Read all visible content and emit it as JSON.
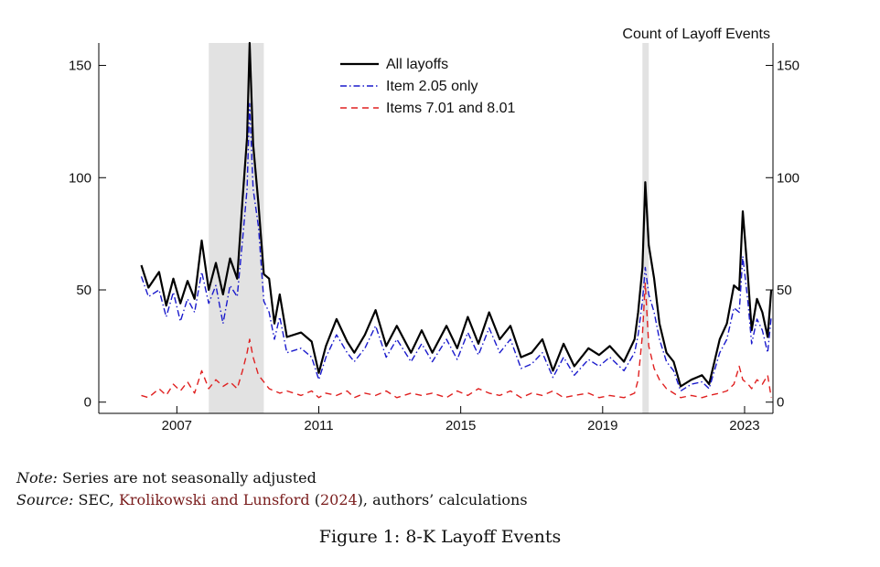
{
  "chart_data": {
    "type": "line",
    "title": "",
    "xlabel": "",
    "ylabel": "",
    "right_axis_label": "Count of Layoff Events",
    "xlim": [
      2004.8,
      2023.8
    ],
    "ylim": [
      -5,
      160
    ],
    "xticks": [
      2007,
      2011,
      2015,
      2019,
      2023
    ],
    "xtick_labels": [
      "2007",
      "2011",
      "2015",
      "2019",
      "2023"
    ],
    "yticks": [
      0,
      50,
      100,
      150
    ],
    "ytick_labels": [
      "0",
      "50",
      "100",
      "150"
    ],
    "grid": false,
    "legend_position": "top-center",
    "recession_shading": [
      {
        "start": 2007.9,
        "end": 2009.45
      },
      {
        "start": 2020.12,
        "end": 2020.3
      }
    ],
    "series": [
      {
        "name": "All layoffs",
        "color": "#000000",
        "style": "solid",
        "points": [
          [
            2006.0,
            61
          ],
          [
            2006.2,
            51
          ],
          [
            2006.5,
            58
          ],
          [
            2006.7,
            43
          ],
          [
            2006.9,
            55
          ],
          [
            2007.1,
            44
          ],
          [
            2007.3,
            54
          ],
          [
            2007.5,
            46
          ],
          [
            2007.7,
            72
          ],
          [
            2007.9,
            50
          ],
          [
            2008.1,
            62
          ],
          [
            2008.3,
            48
          ],
          [
            2008.5,
            64
          ],
          [
            2008.7,
            55
          ],
          [
            2008.85,
            90
          ],
          [
            2008.98,
            118
          ],
          [
            2009.05,
            160
          ],
          [
            2009.15,
            115
          ],
          [
            2009.3,
            88
          ],
          [
            2009.45,
            57
          ],
          [
            2009.6,
            55
          ],
          [
            2009.75,
            35
          ],
          [
            2009.9,
            48
          ],
          [
            2010.1,
            29
          ],
          [
            2010.5,
            31
          ],
          [
            2010.8,
            27
          ],
          [
            2011.0,
            13
          ],
          [
            2011.2,
            25
          ],
          [
            2011.5,
            37
          ],
          [
            2011.8,
            27
          ],
          [
            2012.0,
            22
          ],
          [
            2012.3,
            30
          ],
          [
            2012.6,
            41
          ],
          [
            2012.9,
            25
          ],
          [
            2013.2,
            34
          ],
          [
            2013.6,
            22
          ],
          [
            2013.9,
            32
          ],
          [
            2014.2,
            22
          ],
          [
            2014.6,
            34
          ],
          [
            2014.9,
            24
          ],
          [
            2015.2,
            38
          ],
          [
            2015.5,
            26
          ],
          [
            2015.8,
            40
          ],
          [
            2016.1,
            28
          ],
          [
            2016.4,
            34
          ],
          [
            2016.7,
            20
          ],
          [
            2017.0,
            22
          ],
          [
            2017.3,
            28
          ],
          [
            2017.6,
            14
          ],
          [
            2017.9,
            26
          ],
          [
            2018.2,
            16
          ],
          [
            2018.6,
            24
          ],
          [
            2018.9,
            21
          ],
          [
            2019.2,
            25
          ],
          [
            2019.6,
            18
          ],
          [
            2019.9,
            28
          ],
          [
            2020.0,
            40
          ],
          [
            2020.12,
            60
          ],
          [
            2020.2,
            98
          ],
          [
            2020.3,
            70
          ],
          [
            2020.45,
            55
          ],
          [
            2020.6,
            35
          ],
          [
            2020.8,
            22
          ],
          [
            2021.0,
            18
          ],
          [
            2021.2,
            7
          ],
          [
            2021.5,
            10
          ],
          [
            2021.8,
            12
          ],
          [
            2022.0,
            8
          ],
          [
            2022.3,
            28
          ],
          [
            2022.5,
            35
          ],
          [
            2022.7,
            52
          ],
          [
            2022.85,
            50
          ],
          [
            2022.95,
            85
          ],
          [
            2023.1,
            55
          ],
          [
            2023.2,
            32
          ],
          [
            2023.35,
            46
          ],
          [
            2023.5,
            40
          ],
          [
            2023.65,
            29
          ],
          [
            2023.75,
            50
          ]
        ]
      },
      {
        "name": "Item 2.05 only",
        "color": "#1a1acc",
        "style": "dashdot",
        "points": [
          [
            2006.0,
            56
          ],
          [
            2006.2,
            47
          ],
          [
            2006.5,
            50
          ],
          [
            2006.7,
            38
          ],
          [
            2006.9,
            49
          ],
          [
            2007.1,
            36
          ],
          [
            2007.3,
            46
          ],
          [
            2007.5,
            40
          ],
          [
            2007.7,
            58
          ],
          [
            2007.9,
            44
          ],
          [
            2008.1,
            52
          ],
          [
            2008.3,
            35
          ],
          [
            2008.5,
            52
          ],
          [
            2008.7,
            47
          ],
          [
            2008.85,
            72
          ],
          [
            2008.98,
            95
          ],
          [
            2009.05,
            133
          ],
          [
            2009.15,
            95
          ],
          [
            2009.3,
            78
          ],
          [
            2009.45,
            45
          ],
          [
            2009.6,
            40
          ],
          [
            2009.75,
            28
          ],
          [
            2009.9,
            38
          ],
          [
            2010.1,
            22
          ],
          [
            2010.5,
            24
          ],
          [
            2010.8,
            20
          ],
          [
            2011.0,
            10
          ],
          [
            2011.2,
            20
          ],
          [
            2011.5,
            30
          ],
          [
            2011.8,
            22
          ],
          [
            2012.0,
            18
          ],
          [
            2012.3,
            24
          ],
          [
            2012.6,
            34
          ],
          [
            2012.9,
            20
          ],
          [
            2013.2,
            28
          ],
          [
            2013.6,
            18
          ],
          [
            2013.9,
            26
          ],
          [
            2014.2,
            18
          ],
          [
            2014.6,
            28
          ],
          [
            2014.9,
            19
          ],
          [
            2015.2,
            31
          ],
          [
            2015.5,
            21
          ],
          [
            2015.8,
            33
          ],
          [
            2016.1,
            22
          ],
          [
            2016.4,
            28
          ],
          [
            2016.7,
            15
          ],
          [
            2017.0,
            17
          ],
          [
            2017.3,
            22
          ],
          [
            2017.6,
            11
          ],
          [
            2017.9,
            20
          ],
          [
            2018.2,
            12
          ],
          [
            2018.6,
            19
          ],
          [
            2018.9,
            16
          ],
          [
            2019.2,
            20
          ],
          [
            2019.6,
            14
          ],
          [
            2019.9,
            22
          ],
          [
            2020.0,
            30
          ],
          [
            2020.12,
            45
          ],
          [
            2020.2,
            60
          ],
          [
            2020.3,
            48
          ],
          [
            2020.45,
            40
          ],
          [
            2020.6,
            28
          ],
          [
            2020.8,
            18
          ],
          [
            2021.0,
            14
          ],
          [
            2021.2,
            5
          ],
          [
            2021.5,
            8
          ],
          [
            2021.8,
            9
          ],
          [
            2022.0,
            6
          ],
          [
            2022.3,
            22
          ],
          [
            2022.5,
            28
          ],
          [
            2022.7,
            42
          ],
          [
            2022.85,
            40
          ],
          [
            2022.95,
            65
          ],
          [
            2023.1,
            44
          ],
          [
            2023.2,
            26
          ],
          [
            2023.35,
            37
          ],
          [
            2023.5,
            32
          ],
          [
            2023.65,
            22
          ],
          [
            2023.75,
            38
          ]
        ]
      },
      {
        "name": "Items 7.01 and 8.01",
        "color": "#e02020",
        "style": "dashed",
        "points": [
          [
            2006.0,
            3
          ],
          [
            2006.2,
            2
          ],
          [
            2006.5,
            6
          ],
          [
            2006.7,
            3
          ],
          [
            2006.9,
            8
          ],
          [
            2007.1,
            5
          ],
          [
            2007.3,
            9
          ],
          [
            2007.5,
            4
          ],
          [
            2007.7,
            14
          ],
          [
            2007.9,
            6
          ],
          [
            2008.1,
            10
          ],
          [
            2008.3,
            7
          ],
          [
            2008.5,
            9
          ],
          [
            2008.7,
            6
          ],
          [
            2008.85,
            14
          ],
          [
            2008.98,
            22
          ],
          [
            2009.05,
            28
          ],
          [
            2009.15,
            20
          ],
          [
            2009.3,
            12
          ],
          [
            2009.45,
            9
          ],
          [
            2009.6,
            6
          ],
          [
            2009.75,
            5
          ],
          [
            2009.9,
            4
          ],
          [
            2010.1,
            5
          ],
          [
            2010.5,
            3
          ],
          [
            2010.8,
            5
          ],
          [
            2011.0,
            2
          ],
          [
            2011.2,
            4
          ],
          [
            2011.5,
            3
          ],
          [
            2011.8,
            5
          ],
          [
            2012.0,
            2
          ],
          [
            2012.3,
            4
          ],
          [
            2012.6,
            3
          ],
          [
            2012.9,
            5
          ],
          [
            2013.2,
            2
          ],
          [
            2013.6,
            4
          ],
          [
            2013.9,
            3
          ],
          [
            2014.2,
            4
          ],
          [
            2014.6,
            2
          ],
          [
            2014.9,
            5
          ],
          [
            2015.2,
            3
          ],
          [
            2015.5,
            6
          ],
          [
            2015.8,
            4
          ],
          [
            2016.1,
            3
          ],
          [
            2016.4,
            5
          ],
          [
            2016.7,
            2
          ],
          [
            2017.0,
            4
          ],
          [
            2017.3,
            3
          ],
          [
            2017.6,
            5
          ],
          [
            2017.9,
            2
          ],
          [
            2018.2,
            3
          ],
          [
            2018.6,
            4
          ],
          [
            2018.9,
            2
          ],
          [
            2019.2,
            3
          ],
          [
            2019.6,
            2
          ],
          [
            2019.9,
            4
          ],
          [
            2020.0,
            10
          ],
          [
            2020.12,
            30
          ],
          [
            2020.2,
            53
          ],
          [
            2020.3,
            25
          ],
          [
            2020.45,
            15
          ],
          [
            2020.6,
            10
          ],
          [
            2020.8,
            6
          ],
          [
            2021.0,
            4
          ],
          [
            2021.2,
            2
          ],
          [
            2021.5,
            3
          ],
          [
            2021.8,
            2
          ],
          [
            2022.0,
            3
          ],
          [
            2022.3,
            4
          ],
          [
            2022.5,
            5
          ],
          [
            2022.7,
            8
          ],
          [
            2022.85,
            16
          ],
          [
            2022.95,
            10
          ],
          [
            2023.1,
            8
          ],
          [
            2023.2,
            6
          ],
          [
            2023.35,
            10
          ],
          [
            2023.5,
            8
          ],
          [
            2023.65,
            12
          ],
          [
            2023.75,
            2
          ]
        ]
      }
    ]
  },
  "notes": {
    "note_label": "Note:",
    "note_text": " Series are not seasonally adjusted",
    "source_label": "Source:",
    "source_prefix": " SEC, ",
    "source_cite": "Krolikowski and Lunsford",
    "source_paren_open": " (",
    "source_year": "2024",
    "source_paren_close": ")",
    "source_suffix": ", authors’ calculations"
  },
  "caption": "Figure 1: 8-K Layoff Events"
}
